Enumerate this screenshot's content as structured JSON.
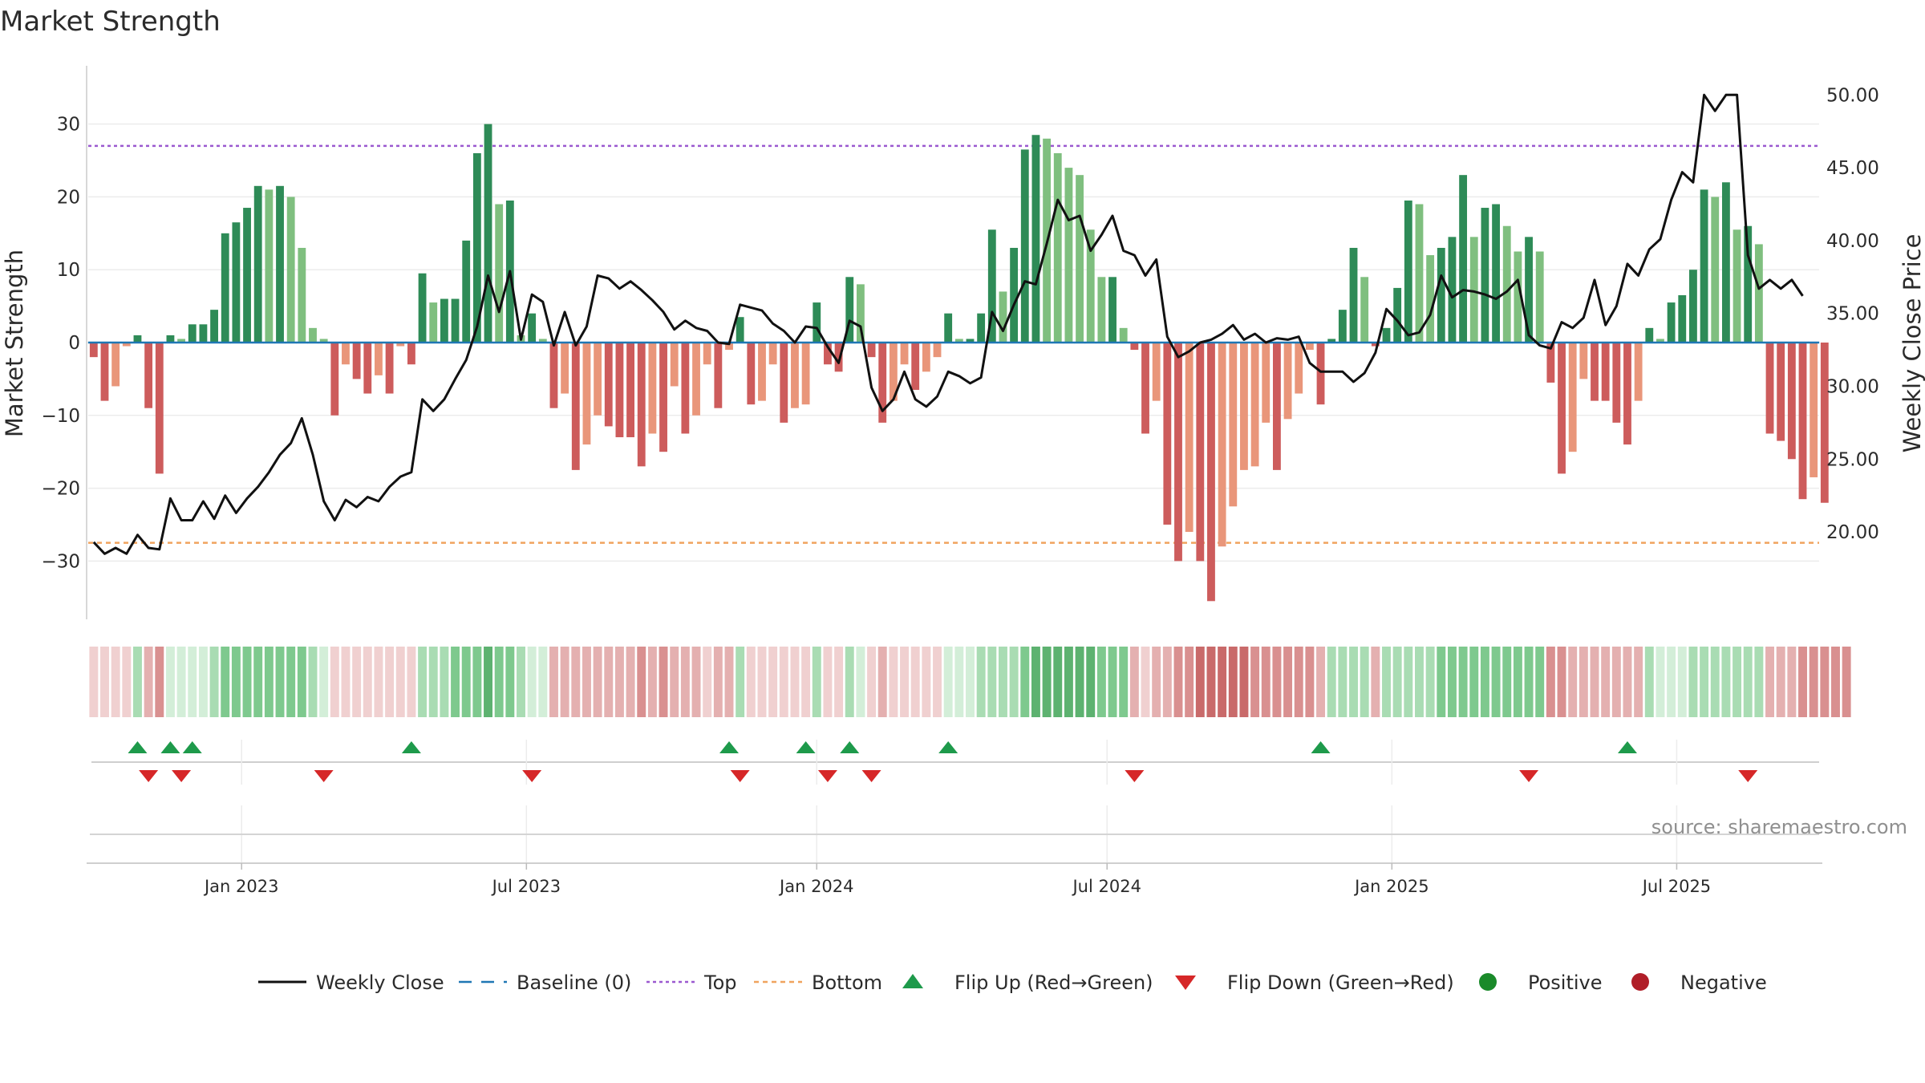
{
  "chart_data": {
    "type": "bar",
    "title": "Market Strength",
    "ylabel": "Market Strength",
    "y2label": "Weekly Close Price",
    "source": "source: sharemaestro.com",
    "ylim": [
      -38,
      38
    ],
    "y2lim": [
      14.0,
      52.0
    ],
    "yticks": [
      {
        "v": 30,
        "label": "30"
      },
      {
        "v": 20,
        "label": "20"
      },
      {
        "v": 10,
        "label": "10"
      },
      {
        "v": 0,
        "label": "0"
      },
      {
        "v": -10,
        "label": "−10"
      },
      {
        "v": -20,
        "label": "−20"
      },
      {
        "v": -30,
        "label": "−30"
      }
    ],
    "y2ticks": [
      "50.00",
      "45.00",
      "40.00",
      "35.00",
      "30.00",
      "25.00",
      "20.00"
    ],
    "y2tick_values": [
      50,
      45,
      40,
      35,
      30,
      25,
      20
    ],
    "top_level": 27,
    "bottom_level": -27.5,
    "x_tick_labels": [
      "Jan 2023",
      "Jul 2023",
      "Jan 2024",
      "Jul 2024",
      "Jan 2025",
      "Jul 2025"
    ],
    "x_tick_weeks": [
      14,
      40,
      66.5,
      93,
      119,
      145
    ],
    "bar_weeks": 158,
    "strength": [
      -2,
      -8,
      -6,
      -0.5,
      1,
      -9,
      -18,
      1,
      0.5,
      2.5,
      2.5,
      4.5,
      15,
      16.5,
      18.5,
      21.5,
      21,
      21.5,
      20,
      13,
      2,
      0.5,
      -10,
      -3,
      -5,
      -7,
      -4.5,
      -7,
      -0.5,
      -3,
      9.5,
      5.5,
      6,
      6,
      14,
      26,
      30,
      19,
      19.5,
      1,
      4,
      0.5,
      -9,
      -7,
      -17.5,
      -14,
      -10,
      -11.5,
      -13,
      -13,
      -17,
      -12.5,
      -15,
      -6,
      -12.5,
      -10,
      -3,
      -9,
      -1,
      3.5,
      -8.5,
      -8,
      -3,
      -11,
      -9,
      -8.5,
      5.5,
      -3,
      -4,
      9,
      8,
      -2,
      -11,
      -8,
      -3,
      -6.5,
      -4,
      -2,
      4,
      0.5,
      0.5,
      4,
      15.5,
      7,
      13,
      26.5,
      28.5,
      28,
      26,
      24,
      23,
      15.5,
      9,
      9,
      2,
      -1,
      -12.5,
      -8,
      -25,
      -30,
      -26,
      -30,
      -35.5,
      -28,
      -22.5,
      -17.5,
      -17,
      -11,
      -17.5,
      -10.5,
      -7,
      -1,
      -8.5,
      0.5,
      4.5,
      13,
      9,
      -0.5,
      2,
      7.5,
      19.5,
      19,
      12,
      13,
      14.5,
      23,
      14.5,
      18.5,
      19,
      16,
      12.5,
      14.5,
      12.5,
      -5.5,
      -18,
      -15,
      -5,
      -8,
      -8,
      -11,
      -14,
      -8,
      2,
      0.5,
      5.5,
      6.5,
      10,
      21,
      20,
      22,
      15.5,
      16,
      13.5,
      -12.5,
      -13.5,
      -16,
      -21.5,
      -18.5,
      -22
    ],
    "close": [
      19.3,
      18.5,
      18.9,
      18.5,
      19.8,
      18.9,
      18.8,
      22.3,
      20.8,
      20.8,
      22.1,
      20.9,
      22.5,
      21.3,
      22.3,
      23.1,
      24.1,
      25.3,
      26.1,
      27.8,
      25.3,
      22.1,
      20.8,
      22.2,
      21.7,
      22.4,
      22.1,
      23.1,
      23.8,
      24.1,
      29.1,
      28.3,
      29.1,
      30.5,
      31.8,
      34.1,
      37.6,
      35.1,
      37.9,
      33.2,
      36.3,
      35.8,
      32.8,
      35.1,
      32.8,
      34.1,
      37.6,
      37.4,
      36.7,
      37.2,
      36.6,
      35.9,
      35.1,
      33.9,
      34.5,
      34.0,
      33.8,
      33.0,
      32.9,
      35.6,
      35.4,
      35.2,
      34.3,
      33.8,
      33.0,
      34.1,
      34.0,
      32.7,
      31.6,
      34.5,
      34.1,
      29.9,
      28.3,
      29.1,
      31.0,
      29.1,
      28.6,
      29.3,
      31.0,
      30.7,
      30.2,
      30.6,
      35.1,
      33.8,
      35.6,
      37.2,
      37.0,
      39.8,
      42.8,
      41.4,
      41.7,
      39.3,
      40.4,
      41.7,
      39.3,
      39.0,
      37.6,
      38.7,
      33.4,
      32.0,
      32.4,
      33.0,
      33.2,
      33.6,
      34.2,
      33.2,
      33.6,
      33.0,
      33.3,
      33.2,
      33.4,
      31.6,
      31.0,
      31.0,
      31.0,
      30.3,
      30.9,
      32.3,
      35.3,
      34.5,
      33.5,
      33.7,
      34.9,
      37.6,
      36.1,
      36.6,
      36.5,
      36.3,
      36.0,
      36.5,
      37.3,
      33.5,
      32.8,
      32.6,
      34.4,
      34.0,
      34.7,
      37.3,
      34.2,
      35.5,
      38.4,
      37.6,
      39.4,
      40.1,
      42.8,
      44.7,
      44.0,
      50.0,
      48.9,
      50.0,
      50.0,
      39.0,
      36.7,
      37.3,
      36.7,
      37.3,
      36.2
    ],
    "heat_shade": [
      1,
      1,
      1,
      1,
      2,
      2,
      3,
      1,
      1,
      1,
      1,
      2,
      3,
      3,
      3,
      3,
      3,
      3,
      3,
      3,
      2,
      1,
      1,
      1,
      1,
      1,
      1,
      1,
      1,
      1,
      2,
      2,
      2,
      3,
      3,
      3,
      4,
      3,
      3,
      2,
      1,
      1,
      2,
      2,
      2,
      2,
      2,
      2,
      2,
      2,
      3,
      2,
      3,
      2,
      2,
      2,
      1,
      2,
      2,
      2,
      1,
      1,
      1,
      1,
      1,
      1,
      2,
      1,
      1,
      2,
      1,
      1,
      2,
      1,
      1,
      1,
      1,
      1,
      1,
      1,
      1,
      2,
      2,
      2,
      2,
      3,
      4,
      4,
      4,
      4,
      4,
      4,
      3,
      3,
      3,
      2,
      1,
      2,
      2,
      3,
      3,
      4,
      4,
      4,
      4,
      4,
      3,
      3,
      3,
      3,
      3,
      3,
      2,
      2,
      2,
      2,
      2,
      2,
      2,
      2,
      2,
      2,
      2,
      3,
      3,
      3,
      3,
      3,
      3,
      3,
      3,
      3,
      3,
      3,
      3,
      2,
      2,
      2,
      2,
      2,
      2,
      2,
      2,
      1,
      1,
      1,
      2,
      2,
      2,
      2,
      2,
      2,
      2,
      2,
      2,
      2,
      3,
      3,
      3,
      3,
      3
    ],
    "flip_up_weeks": [
      4,
      7,
      9,
      29,
      58,
      65,
      69,
      78,
      112,
      140
    ],
    "flip_down_weeks": [
      5,
      8,
      21,
      40,
      59,
      67,
      71,
      95,
      131,
      151
    ],
    "colors": {
      "green_dark": "#2e8b57",
      "green_light": "#7fbf7f",
      "red_dark": "#cd5c5c",
      "red_light": "#e9967a",
      "close_line": "#111111",
      "baseline": "#1f77b4",
      "top_line": "#9b59d0",
      "bottom_line": "#f0a35e",
      "flip_up": "#1e9a4b",
      "flip_down": "#d62728",
      "positive": "#1a8a2a",
      "negative": "#b01e28"
    },
    "legend": [
      {
        "label": "Weekly Close",
        "kind": "line"
      },
      {
        "label": "Baseline (0)",
        "kind": "dash"
      },
      {
        "label": "Top",
        "kind": "dot-purple"
      },
      {
        "label": "Bottom",
        "kind": "dot-orange"
      },
      {
        "label": "Flip Up (Red→Green)",
        "kind": "tri-up"
      },
      {
        "label": "Flip Down (Green→Red)",
        "kind": "tri-down"
      },
      {
        "label": "Positive",
        "kind": "circle-pos"
      },
      {
        "label": "Negative",
        "kind": "circle-neg"
      }
    ]
  }
}
